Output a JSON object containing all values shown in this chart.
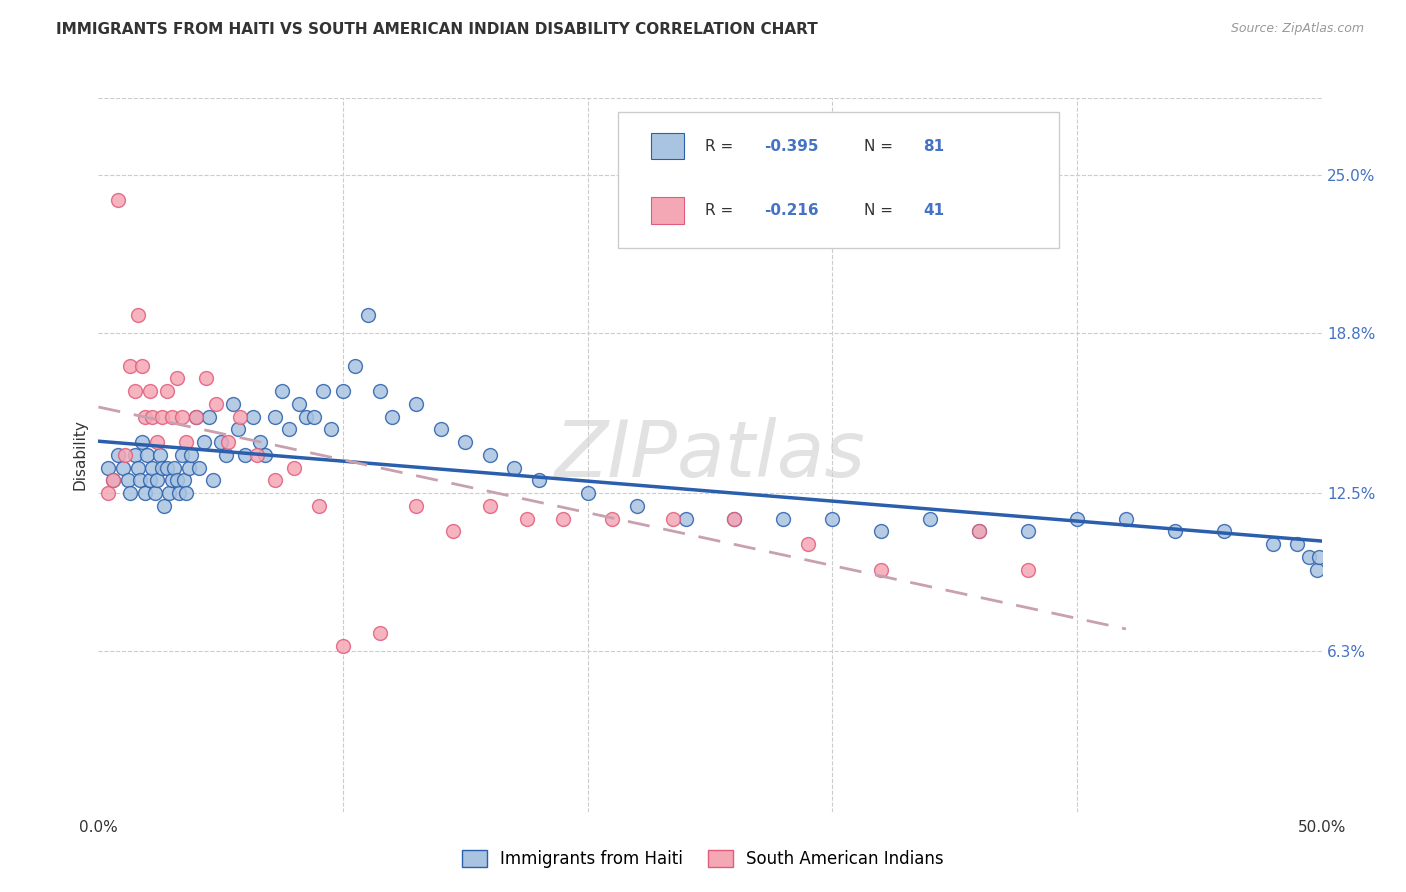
{
  "title": "IMMIGRANTS FROM HAITI VS SOUTH AMERICAN INDIAN DISABILITY CORRELATION CHART",
  "source": "Source: ZipAtlas.com",
  "ylabel": "Disability",
  "xmin": 0.0,
  "xmax": 0.5,
  "ymin": 0.0,
  "ymax": 0.28,
  "yticks": [
    0.063,
    0.125,
    0.188,
    0.25
  ],
  "ytick_labels": [
    "6.3%",
    "12.5%",
    "18.8%",
    "25.0%"
  ],
  "xticks": [
    0.0,
    0.1,
    0.2,
    0.3,
    0.4,
    0.5
  ],
  "haiti_color": "#a8c4e0",
  "haiti_edge_color": "#2b5fad",
  "haiti_line_color": "#2b5fad",
  "sa_color": "#f4a7b5",
  "sa_edge_color": "#e05c7a",
  "sa_line_color": "#c8a0b0",
  "legend_r_haiti": "-0.395",
  "legend_n_haiti": "81",
  "legend_r_sa": "-0.216",
  "legend_n_sa": "41",
  "watermark": "ZIPatlas",
  "text_color": "#333333",
  "blue_color": "#4472c4",
  "source_color": "#999999",
  "grid_color": "#cccccc",
  "haiti_x": [
    0.004,
    0.006,
    0.008,
    0.01,
    0.012,
    0.013,
    0.015,
    0.016,
    0.017,
    0.018,
    0.019,
    0.02,
    0.021,
    0.022,
    0.023,
    0.024,
    0.025,
    0.026,
    0.027,
    0.028,
    0.029,
    0.03,
    0.031,
    0.032,
    0.033,
    0.034,
    0.035,
    0.036,
    0.037,
    0.038,
    0.04,
    0.041,
    0.043,
    0.045,
    0.047,
    0.05,
    0.052,
    0.055,
    0.057,
    0.06,
    0.063,
    0.066,
    0.068,
    0.072,
    0.075,
    0.078,
    0.082,
    0.085,
    0.088,
    0.092,
    0.095,
    0.1,
    0.105,
    0.11,
    0.115,
    0.12,
    0.13,
    0.14,
    0.15,
    0.16,
    0.17,
    0.18,
    0.2,
    0.22,
    0.24,
    0.26,
    0.28,
    0.3,
    0.32,
    0.34,
    0.36,
    0.38,
    0.4,
    0.42,
    0.44,
    0.46,
    0.48,
    0.49,
    0.495,
    0.498,
    0.499
  ],
  "haiti_y": [
    0.135,
    0.13,
    0.14,
    0.135,
    0.13,
    0.125,
    0.14,
    0.135,
    0.13,
    0.145,
    0.125,
    0.14,
    0.13,
    0.135,
    0.125,
    0.13,
    0.14,
    0.135,
    0.12,
    0.135,
    0.125,
    0.13,
    0.135,
    0.13,
    0.125,
    0.14,
    0.13,
    0.125,
    0.135,
    0.14,
    0.155,
    0.135,
    0.145,
    0.155,
    0.13,
    0.145,
    0.14,
    0.16,
    0.15,
    0.14,
    0.155,
    0.145,
    0.14,
    0.155,
    0.165,
    0.15,
    0.16,
    0.155,
    0.155,
    0.165,
    0.15,
    0.165,
    0.175,
    0.195,
    0.165,
    0.155,
    0.16,
    0.15,
    0.145,
    0.14,
    0.135,
    0.13,
    0.125,
    0.12,
    0.115,
    0.115,
    0.115,
    0.115,
    0.11,
    0.115,
    0.11,
    0.11,
    0.115,
    0.115,
    0.11,
    0.11,
    0.105,
    0.105,
    0.1,
    0.095,
    0.1
  ],
  "sa_x": [
    0.004,
    0.006,
    0.008,
    0.011,
    0.013,
    0.015,
    0.016,
    0.018,
    0.019,
    0.021,
    0.022,
    0.024,
    0.026,
    0.028,
    0.03,
    0.032,
    0.034,
    0.036,
    0.04,
    0.044,
    0.048,
    0.053,
    0.058,
    0.065,
    0.072,
    0.08,
    0.09,
    0.1,
    0.115,
    0.13,
    0.145,
    0.16,
    0.175,
    0.19,
    0.21,
    0.235,
    0.26,
    0.29,
    0.32,
    0.36,
    0.38
  ],
  "sa_y": [
    0.125,
    0.13,
    0.24,
    0.14,
    0.175,
    0.165,
    0.195,
    0.175,
    0.155,
    0.165,
    0.155,
    0.145,
    0.155,
    0.165,
    0.155,
    0.17,
    0.155,
    0.145,
    0.155,
    0.17,
    0.16,
    0.145,
    0.155,
    0.14,
    0.13,
    0.135,
    0.12,
    0.065,
    0.07,
    0.12,
    0.11,
    0.12,
    0.115,
    0.115,
    0.115,
    0.115,
    0.115,
    0.105,
    0.095,
    0.11,
    0.095
  ]
}
